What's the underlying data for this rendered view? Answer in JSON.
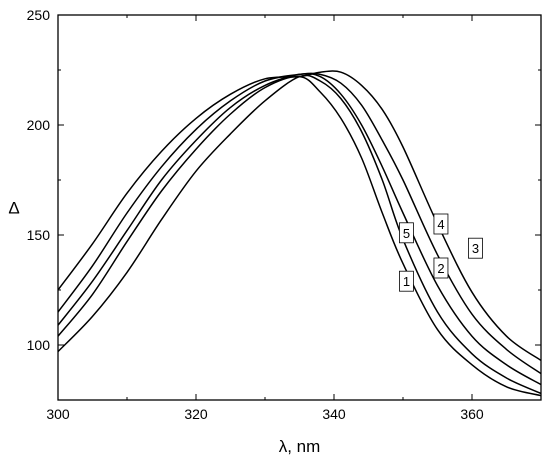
{
  "chart_data": {
    "type": "line",
    "title": "",
    "xlabel": "λ, nm",
    "ylabel": "Δ",
    "xlim": [
      300,
      370
    ],
    "ylim": [
      75,
      250
    ],
    "x_ticks": [
      300,
      320,
      340,
      360
    ],
    "x_tick_labels": [
      "300",
      "320",
      "340",
      "360"
    ],
    "y_ticks": [
      100,
      150,
      200,
      250
    ],
    "y_tick_labels": [
      "100",
      "150",
      "200",
      "250"
    ],
    "grid": false,
    "legend": "none",
    "line_color": "#000000",
    "series": [
      {
        "label": "1",
        "label_x": 350.5,
        "label_y": 129,
        "x": [
          300,
          305,
          310,
          315,
          320,
          325,
          330,
          335,
          338,
          341,
          344,
          347,
          350,
          355,
          360,
          365,
          370
        ],
        "y": [
          97,
          113,
          133,
          157,
          179,
          196,
          211,
          222,
          220,
          212,
          197,
          175,
          148,
          115,
          96,
          85,
          78
        ]
      },
      {
        "label": "5",
        "label_x": 350.5,
        "label_y": 151,
        "x": [
          300,
          305,
          310,
          315,
          320,
          325,
          330,
          335,
          338,
          341,
          344,
          347,
          350,
          355,
          360,
          365,
          370
        ],
        "y": [
          104,
          123,
          147,
          170,
          189,
          205,
          217,
          222,
          215,
          203,
          185,
          160,
          137,
          107,
          91,
          81,
          77
        ]
      },
      {
        "label": "2",
        "label_x": 355.5,
        "label_y": 135,
        "x": [
          300,
          305,
          310,
          315,
          320,
          325,
          330,
          335,
          338,
          341,
          344,
          347,
          350,
          355,
          360,
          365,
          370
        ],
        "y": [
          109,
          129,
          152,
          175,
          193,
          208,
          218,
          223,
          222,
          214,
          200,
          181,
          160,
          127,
          104,
          91,
          82
        ]
      },
      {
        "label": "4",
        "label_x": 355.5,
        "label_y": 155,
        "x": [
          300,
          305,
          310,
          315,
          320,
          325,
          330,
          335,
          338,
          341,
          344,
          347,
          350,
          355,
          360,
          365,
          370
        ],
        "y": [
          115,
          136,
          160,
          181,
          198,
          211,
          220,
          223,
          223,
          219,
          209,
          193,
          175,
          141,
          114,
          98,
          87
        ]
      },
      {
        "label": "3",
        "label_x": 360.5,
        "label_y": 144,
        "x": [
          300,
          305,
          310,
          315,
          320,
          325,
          330,
          335,
          338,
          341,
          344,
          347,
          350,
          355,
          360,
          365,
          370
        ],
        "y": [
          125,
          146,
          169,
          188,
          203,
          214,
          221,
          222,
          224,
          224,
          218,
          207,
          190,
          155,
          124,
          104,
          93
        ]
      }
    ]
  }
}
